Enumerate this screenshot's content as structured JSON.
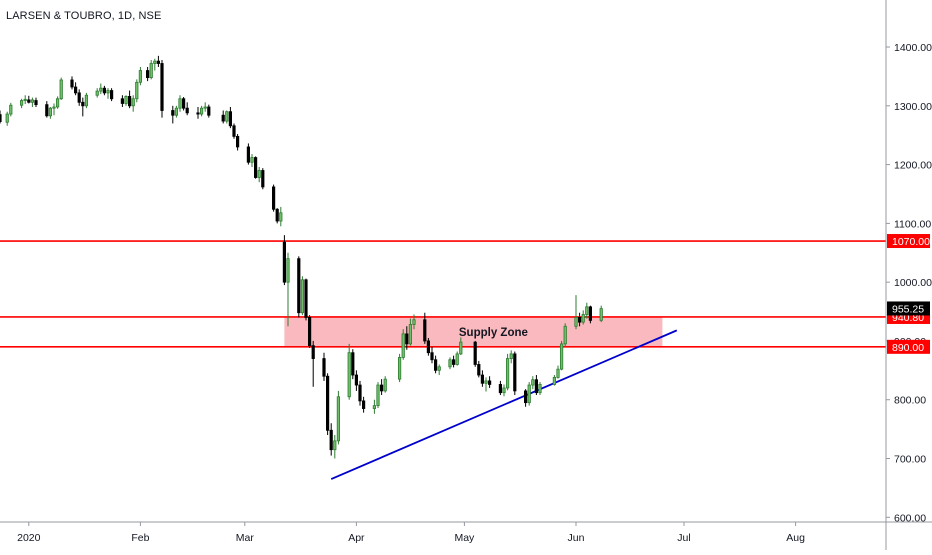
{
  "chart_data": {
    "type": "candlestick",
    "title": "LARSEN & TOUBRO, 1D, NSE",
    "x_labels": [
      "2020",
      "Feb",
      "Mar",
      "Apr",
      "May",
      "Jun",
      "Jul",
      "Aug"
    ],
    "y_ticks": [
      600,
      700,
      800,
      900,
      1000,
      1100,
      1200,
      1300,
      1400
    ],
    "y_tick_labels": [
      "600.00",
      "700.00",
      "800.00",
      "900.00",
      "1000.00",
      "1100.00",
      "1200.00",
      "1300.00",
      "1400.00"
    ],
    "ylim": [
      592,
      1480
    ],
    "start_date": "2019-12-24",
    "candles": [
      [
        "2019-12-24",
        1285,
        1292,
        1270,
        1273
      ],
      [
        "2019-12-26",
        1272,
        1290,
        1266,
        1286
      ],
      [
        "2019-12-27",
        1286,
        1305,
        1282,
        1301
      ],
      [
        "2019-12-30",
        1301,
        1312,
        1296,
        1309
      ],
      [
        "2019-12-31",
        1309,
        1318,
        1303,
        1311
      ],
      [
        "2020-01-01",
        1310,
        1317,
        1304,
        1306
      ],
      [
        "2020-01-02",
        1306,
        1314,
        1298,
        1310
      ],
      [
        "2020-01-03",
        1309,
        1314,
        1298,
        1302
      ],
      [
        "2020-01-06",
        1302,
        1308,
        1280,
        1283
      ],
      [
        "2020-01-07",
        1283,
        1298,
        1278,
        1296
      ],
      [
        "2020-01-08",
        1296,
        1304,
        1284,
        1298
      ],
      [
        "2020-01-09",
        1298,
        1316,
        1295,
        1312
      ],
      [
        "2020-01-10",
        1312,
        1348,
        1310,
        1344
      ],
      [
        "2020-01-13",
        1344,
        1350,
        1328,
        1332
      ],
      [
        "2020-01-14",
        1332,
        1340,
        1318,
        1322
      ],
      [
        "2020-01-15",
        1322,
        1328,
        1300,
        1306
      ],
      [
        "2020-01-16",
        1306,
        1314,
        1282,
        1300
      ],
      [
        "2020-01-17",
        1300,
        1322,
        1296,
        1318
      ],
      [
        "2020-01-20",
        1318,
        1330,
        1314,
        1325
      ],
      [
        "2020-01-21",
        1325,
        1338,
        1320,
        1330
      ],
      [
        "2020-01-22",
        1330,
        1334,
        1318,
        1322
      ],
      [
        "2020-01-23",
        1322,
        1330,
        1312,
        1326
      ],
      [
        "2020-01-24",
        1326,
        1330,
        1308,
        1312
      ],
      [
        "2020-01-27",
        1312,
        1318,
        1298,
        1304
      ],
      [
        "2020-01-28",
        1304,
        1318,
        1300,
        1316
      ],
      [
        "2020-01-29",
        1316,
        1326,
        1296,
        1300
      ],
      [
        "2020-01-30",
        1300,
        1318,
        1290,
        1312
      ],
      [
        "2020-01-31",
        1312,
        1345,
        1306,
        1340
      ],
      [
        "2020-02-01",
        1340,
        1366,
        1335,
        1360
      ],
      [
        "2020-02-03",
        1360,
        1366,
        1342,
        1348
      ],
      [
        "2020-02-04",
        1348,
        1378,
        1345,
        1372
      ],
      [
        "2020-02-05",
        1372,
        1380,
        1360,
        1376
      ],
      [
        "2020-02-06",
        1376,
        1385,
        1366,
        1372
      ],
      [
        "2020-02-07",
        1372,
        1378,
        1280,
        1292
      ],
      [
        "2020-02-10",
        1292,
        1300,
        1270,
        1284
      ],
      [
        "2020-02-11",
        1284,
        1300,
        1280,
        1296
      ],
      [
        "2020-02-12",
        1296,
        1318,
        1290,
        1312
      ],
      [
        "2020-02-13",
        1312,
        1315,
        1292,
        1296
      ],
      [
        "2020-02-14",
        1296,
        1306,
        1284,
        1288
      ],
      [
        "2020-02-17",
        1288,
        1298,
        1278,
        1286
      ],
      [
        "2020-02-18",
        1286,
        1300,
        1282,
        1296
      ],
      [
        "2020-02-19",
        1296,
        1306,
        1290,
        1298
      ],
      [
        "2020-02-20",
        1298,
        1302,
        1280,
        1284
      ],
      [
        "2020-02-24",
        1284,
        1292,
        1270,
        1274
      ],
      [
        "2020-02-25",
        1274,
        1292,
        1270,
        1290
      ],
      [
        "2020-02-26",
        1290,
        1298,
        1262,
        1266
      ],
      [
        "2020-02-27",
        1266,
        1270,
        1244,
        1248
      ],
      [
        "2020-02-28",
        1248,
        1252,
        1224,
        1230
      ],
      [
        "2020-03-02",
        1230,
        1236,
        1200,
        1204
      ],
      [
        "2020-03-03",
        1204,
        1218,
        1196,
        1212
      ],
      [
        "2020-03-04",
        1212,
        1214,
        1176,
        1178
      ],
      [
        "2020-03-05",
        1178,
        1196,
        1170,
        1190
      ],
      [
        "2020-03-06",
        1190,
        1194,
        1158,
        1162
      ],
      [
        "2020-03-09",
        1162,
        1166,
        1120,
        1124
      ],
      [
        "2020-03-10",
        1124,
        1126,
        1100,
        1104
      ],
      [
        "2020-03-11",
        1104,
        1128,
        1095,
        1118
      ],
      [
        "2020-03-12",
        1068,
        1080,
        995,
        1000
      ],
      [
        "2020-03-13",
        1000,
        1050,
        925,
        1040
      ],
      [
        "2020-03-16",
        1040,
        1044,
        940,
        948
      ],
      [
        "2020-03-17",
        948,
        1010,
        944,
        1004
      ],
      [
        "2020-03-18",
        1004,
        1006,
        935,
        940
      ],
      [
        "2020-03-19",
        940,
        944,
        888,
        892
      ],
      [
        "2020-03-20",
        892,
        900,
        822,
        870
      ],
      [
        "2020-03-23",
        870,
        880,
        832,
        840
      ],
      [
        "2020-03-24",
        840,
        845,
        740,
        748
      ],
      [
        "2020-03-25",
        748,
        760,
        705,
        715
      ],
      [
        "2020-03-26",
        715,
        740,
        700,
        730
      ],
      [
        "2020-03-27",
        730,
        815,
        724,
        805
      ],
      [
        "2020-03-30",
        805,
        895,
        800,
        880
      ],
      [
        "2020-03-31",
        880,
        886,
        835,
        842
      ],
      [
        "2020-04-01",
        842,
        850,
        815,
        825
      ],
      [
        "2020-04-02",
        825,
        832,
        790,
        798
      ],
      [
        "2020-04-03",
        798,
        805,
        778,
        785
      ],
      [
        "2020-04-06",
        785,
        800,
        776,
        790
      ],
      [
        "2020-04-07",
        790,
        830,
        786,
        825
      ],
      [
        "2020-04-08",
        825,
        835,
        808,
        815
      ],
      [
        "2020-04-09",
        815,
        840,
        812,
        835
      ],
      [
        "2020-04-13",
        835,
        878,
        830,
        872
      ],
      [
        "2020-04-14",
        872,
        920,
        868,
        912
      ],
      [
        "2020-04-15",
        912,
        925,
        885,
        895
      ],
      [
        "2020-04-16",
        895,
        938,
        892,
        928
      ],
      [
        "2020-04-17",
        928,
        945,
        920,
        936
      ],
      [
        "2020-04-20",
        936,
        948,
        895,
        900
      ],
      [
        "2020-04-21",
        900,
        905,
        875,
        880
      ],
      [
        "2020-04-22",
        880,
        890,
        862,
        868
      ],
      [
        "2020-04-23",
        868,
        875,
        845,
        850
      ],
      [
        "2020-04-24",
        850,
        860,
        842,
        856
      ],
      [
        "2020-04-27",
        856,
        872,
        852,
        868
      ],
      [
        "2020-04-28",
        868,
        875,
        855,
        860
      ],
      [
        "2020-04-29",
        860,
        882,
        858,
        878
      ],
      [
        "2020-04-30",
        878,
        906,
        876,
        898
      ],
      [
        "2020-05-04",
        898,
        900,
        856,
        860
      ],
      [
        "2020-05-05",
        860,
        866,
        838,
        842
      ],
      [
        "2020-05-06",
        842,
        850,
        822,
        828
      ],
      [
        "2020-05-07",
        828,
        838,
        814,
        832
      ],
      [
        "2020-05-08",
        832,
        840,
        820,
        826
      ],
      [
        "2020-05-11",
        826,
        832,
        808,
        812
      ],
      [
        "2020-05-12",
        812,
        826,
        806,
        820
      ],
      [
        "2020-05-13",
        820,
        878,
        816,
        870
      ],
      [
        "2020-05-14",
        870,
        884,
        862,
        878
      ],
      [
        "2020-05-15",
        878,
        882,
        808,
        815
      ],
      [
        "2020-05-18",
        815,
        818,
        788,
        795
      ],
      [
        "2020-05-19",
        795,
        830,
        790,
        825
      ],
      [
        "2020-05-20",
        825,
        840,
        818,
        834
      ],
      [
        "2020-05-21",
        834,
        842,
        808,
        812
      ],
      [
        "2020-05-22",
        812,
        830,
        808,
        826
      ],
      [
        "2020-05-26",
        826,
        842,
        824,
        838
      ],
      [
        "2020-05-27",
        838,
        858,
        836,
        852
      ],
      [
        "2020-05-28",
        852,
        900,
        850,
        895
      ],
      [
        "2020-05-29",
        895,
        930,
        890,
        925
      ],
      [
        "2020-06-01",
        925,
        978,
        920,
        940
      ],
      [
        "2020-06-02",
        940,
        948,
        925,
        932
      ],
      [
        "2020-06-03",
        932,
        952,
        928,
        945
      ],
      [
        "2020-06-04",
        945,
        965,
        938,
        958
      ],
      [
        "2020-06-05",
        958,
        960,
        930,
        935
      ],
      [
        "2020-06-08",
        935,
        960,
        932,
        955
      ]
    ],
    "horizontal_lines": [
      {
        "name": "resistance-1070",
        "value": 1070,
        "color": "#ff0000",
        "label": "1070.00"
      },
      {
        "name": "resistance-940",
        "value": 940.8,
        "color": "#ff0000",
        "label": "940.80"
      },
      {
        "name": "support-890",
        "value": 890,
        "color": "#ff0000",
        "label": "890.00"
      }
    ],
    "price_label": {
      "value": 955.25,
      "label": "955.25",
      "bg": "#000000"
    },
    "supply_zone": {
      "label": "Supply Zone",
      "top": 940.8,
      "bottom": 890,
      "start": "2020-03-12",
      "end": "2020-06-25",
      "color": "#f7a1a8"
    },
    "trendline": {
      "x1": "2020-03-25",
      "y1": 665,
      "x2": "2020-06-29",
      "y2": 918,
      "color": "#0000cc"
    },
    "colors": {
      "up": "#2e7d32",
      "down": "#000000",
      "up_fill": "#6ebf68",
      "axis_text": "#131722"
    }
  }
}
